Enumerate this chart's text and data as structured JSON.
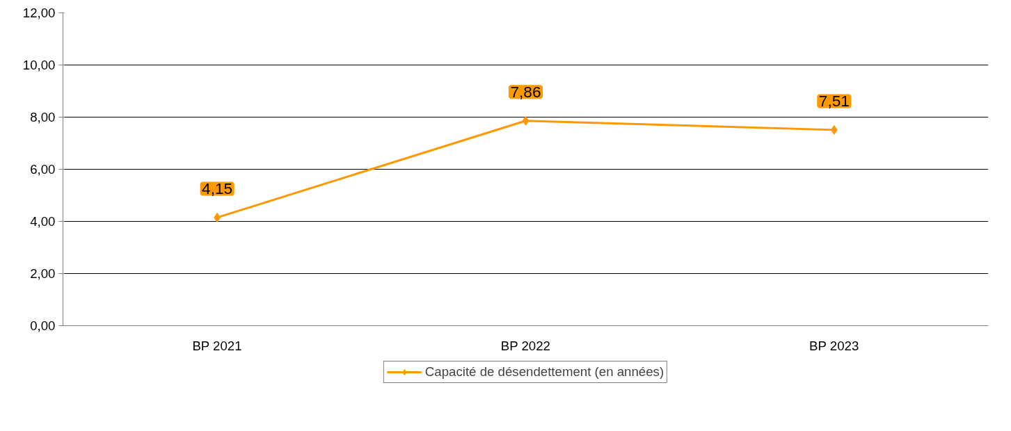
{
  "chart_data": {
    "type": "line",
    "categories": [
      "BP 2021",
      "BP 2022",
      "BP 2023"
    ],
    "series": [
      {
        "name": "Capacité de désendettement (en années)",
        "color": "#ff9900",
        "values": [
          4.15,
          7.86,
          7.51
        ],
        "value_labels": [
          "4,15",
          "7,86",
          "7,51"
        ]
      }
    ],
    "ylim": [
      0,
      12
    ],
    "yticks": [
      {
        "value": 0,
        "label": "0,00"
      },
      {
        "value": 2,
        "label": "2,00"
      },
      {
        "value": 4,
        "label": "4,00"
      },
      {
        "value": 6,
        "label": "6,00"
      },
      {
        "value": 8,
        "label": "8,00"
      },
      {
        "value": 10,
        "label": "10,00"
      },
      {
        "value": 12,
        "label": "12,00"
      }
    ],
    "grid": "y",
    "legend": "bottom",
    "marker": "diamond",
    "line_style": "solid"
  }
}
